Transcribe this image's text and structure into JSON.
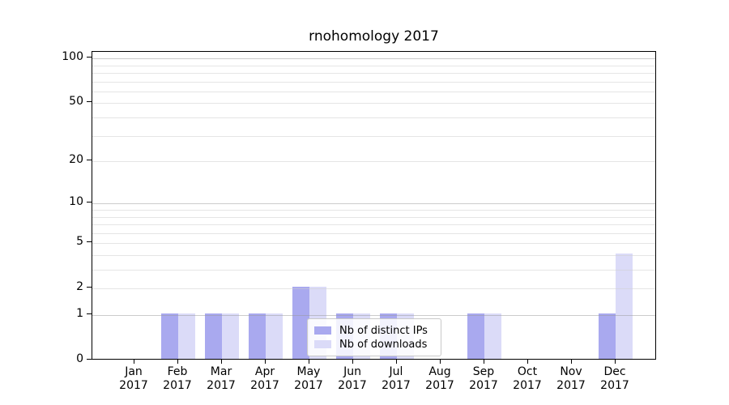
{
  "title": "rnohomology 2017",
  "colors": {
    "ips": "#a9a9ef",
    "downloads": "#dbdbf8",
    "grid_major": "#9a9a9a",
    "grid_minor": "#cfcfcf",
    "axis": "#000000",
    "legend_border": "#c9c9c9",
    "text": "#000000"
  },
  "legend": {
    "items": [
      {
        "label": "Nb of distinct IPs",
        "key": "ips"
      },
      {
        "label": "Nb of downloads",
        "key": "downloads"
      }
    ]
  },
  "y_axis": {
    "tick_labels": [
      "100",
      "50",
      "20",
      "10",
      "5",
      "2",
      "1",
      "0"
    ],
    "tick_values": [
      100,
      50,
      20,
      10,
      5,
      2,
      1,
      0
    ],
    "grid_major_values": [
      1,
      10,
      100
    ],
    "grid_minor_values": [
      2,
      3,
      4,
      5,
      6,
      7,
      8,
      9,
      20,
      30,
      40,
      50,
      60,
      70,
      80,
      90
    ],
    "scale": "log1p"
  },
  "x_axis": {
    "months": [
      "Jan",
      "Feb",
      "Mar",
      "Apr",
      "May",
      "Jun",
      "Jul",
      "Aug",
      "Sep",
      "Oct",
      "Nov",
      "Dec"
    ],
    "year": "2017"
  },
  "chart_data": {
    "type": "bar",
    "title": "rnohomology 2017",
    "categories": [
      "Jan 2017",
      "Feb 2017",
      "Mar 2017",
      "Apr 2017",
      "May 2017",
      "Jun 2017",
      "Jul 2017",
      "Aug 2017",
      "Sep 2017",
      "Oct 2017",
      "Nov 2017",
      "Dec 2017"
    ],
    "series": [
      {
        "name": "Nb of distinct IPs",
        "color": "#a9a9ef",
        "values": [
          0,
          1,
          1,
          1,
          2,
          1,
          1,
          0,
          1,
          0,
          0,
          1
        ]
      },
      {
        "name": "Nb of downloads",
        "color": "#dbdbf8",
        "values": [
          0,
          1,
          1,
          1,
          2,
          1,
          1,
          0,
          1,
          0,
          0,
          4
        ]
      }
    ],
    "yscale": "log1p",
    "yticks": [
      0,
      1,
      2,
      5,
      10,
      20,
      50,
      100
    ],
    "ylim": [
      0,
      111
    ],
    "grid": true,
    "legend_position": "lower center"
  }
}
